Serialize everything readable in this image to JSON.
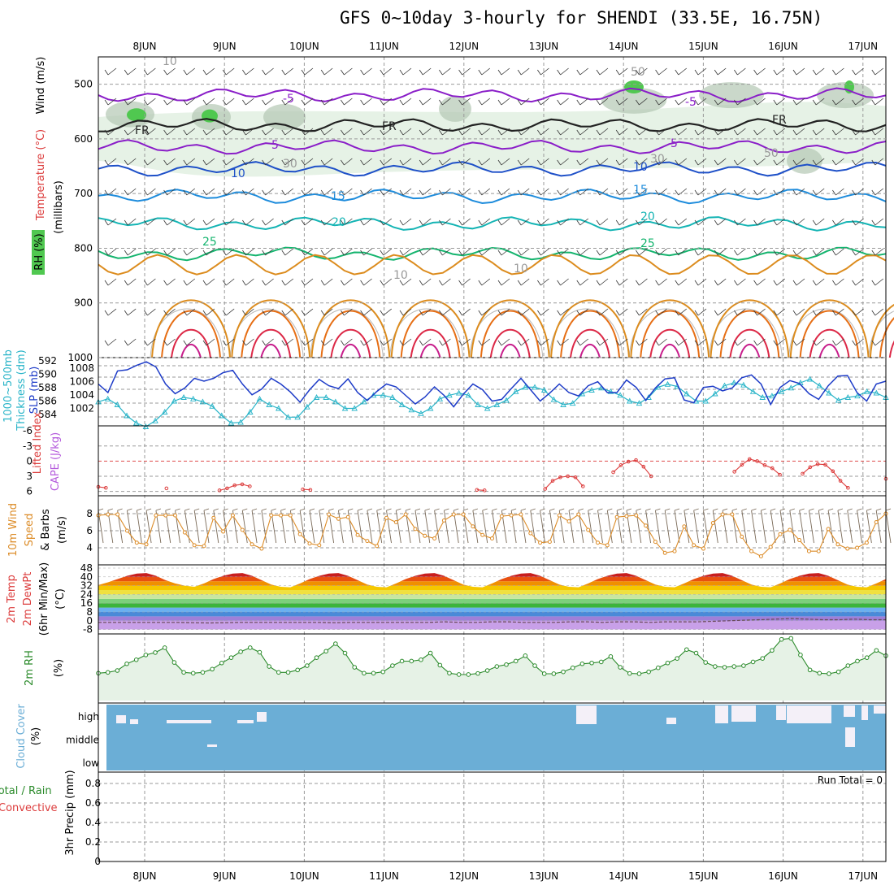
{
  "title": "GFS 0~10day 3-hourly for SHENDI (33.5E, 16.75N)",
  "date_labels": [
    "8JUN",
    "9JUN",
    "10JUN",
    "11JUN",
    "12JUN",
    "13JUN",
    "14JUN",
    "15JUN",
    "16JUN",
    "17JUN"
  ],
  "colors": {
    "purple": "#8a1ec8",
    "black": "#222222",
    "blue": "#1e50c8",
    "lightblue": "#1e8cdc",
    "teal": "#14b4b4",
    "green": "#14b46e",
    "orange": "#dc8c1e",
    "darkorange": "#e66e14",
    "red": "#dc2846",
    "magenta": "#c81e8c",
    "slp": "#1e3cc8",
    "thk": "#28b4c8",
    "li": "#dc3c3c",
    "wind": "#dc8c28",
    "rh": "#2a8a2a",
    "cloud": "#6baed6",
    "cloudgap": "#f4f0f8"
  },
  "panel_labels": {
    "upper": [
      "RH (%)",
      "Temperature (°C)",
      "Wind (m/s)",
      "(millibars)"
    ],
    "slp": [
      "1000~500mb",
      "Thickness (dm)",
      "SLP (mb)"
    ],
    "li": [
      "Lifted Index",
      "CAPE (J/kg)"
    ],
    "wind": [
      "10m Wind",
      "Speed",
      "& Barbs",
      "(m/s)"
    ],
    "temp": [
      "2m Temp",
      "2m DewPt",
      "(6hr Min/Max)",
      "(°C)"
    ],
    "rh": [
      "2m RH",
      "(%)"
    ],
    "cloud": [
      "Cloud Cover",
      "(%)"
    ],
    "precip": [
      "Total / Rain",
      "Convective",
      "3hr Precip (mm)"
    ]
  },
  "run_total": "Run Total = 0",
  "chart_data": [
    {
      "type": "line",
      "panel": "upper-air",
      "ylabel": "(millibars)",
      "y_ticks": [
        "500",
        "600",
        "700",
        "800",
        "900",
        "1000"
      ],
      "ylim": [
        1000,
        450
      ],
      "contour_labels": [
        {
          "text": "-5",
          "color": "purple"
        },
        {
          "text": "-5",
          "color": "purple"
        },
        {
          "text": "FR",
          "color": "black"
        },
        {
          "text": "FR",
          "color": "black"
        },
        {
          "text": "FR",
          "color": "black"
        },
        {
          "text": "5",
          "color": "purple"
        },
        {
          "text": "5",
          "color": "purple"
        },
        {
          "text": "10",
          "color": "blue"
        },
        {
          "text": "10",
          "color": "blue"
        },
        {
          "text": "15",
          "color": "lightblue"
        },
        {
          "text": "15",
          "color": "lightblue"
        },
        {
          "text": "20",
          "color": "teal"
        },
        {
          "text": "20",
          "color": "teal"
        },
        {
          "text": "25",
          "color": "green"
        },
        {
          "text": "25",
          "color": "green"
        },
        {
          "text": "10",
          "color": "gray"
        },
        {
          "text": "10",
          "color": "gray"
        },
        {
          "text": "30",
          "color": "gray"
        },
        {
          "text": "30",
          "color": "gray"
        },
        {
          "text": "50",
          "color": "gray"
        },
        {
          "text": "50",
          "color": "gray"
        },
        {
          "text": "10",
          "color": "gray"
        }
      ],
      "isotherms": [
        {
          "name": "-5",
          "level": 520,
          "color": "purple"
        },
        {
          "name": "FR",
          "level": 575,
          "color": "black"
        },
        {
          "name": "5",
          "level": 615,
          "color": "purple"
        },
        {
          "name": "10",
          "level": 655,
          "color": "blue"
        },
        {
          "name": "15",
          "level": 705,
          "color": "lightblue"
        },
        {
          "name": "20",
          "level": 755,
          "color": "teal"
        },
        {
          "name": "25",
          "level": 810,
          "color": "green"
        }
      ]
    },
    {
      "type": "line",
      "panel": "slp-thickness",
      "y_ticks_left": [
        "592",
        "590",
        "588",
        "586",
        "584"
      ],
      "y_ticks_right": [
        "1008",
        "1006",
        "1004",
        "1002"
      ],
      "series": [
        {
          "name": "SLP (mb)",
          "color": "slp",
          "values": [
            1005.5,
            1004,
            1007.8,
            1008,
            1008.8,
            1009.4,
            1008.5,
            1005.5,
            1003.8,
            1004.8,
            1006.5,
            1006,
            1006.5,
            1007.5,
            1007.9,
            1005.5,
            1003.6,
            1004.6,
            1006.5,
            1005.5,
            1004.1,
            1002.3,
            1004.5,
            1006.3,
            1005.2,
            1004.7,
            1006.4,
            1004,
            1002.6,
            1004.2,
            1005.5,
            1005,
            1003.5,
            1002,
            1003.2,
            1005,
            1003.5,
            1001.5,
            1003.7,
            1005.5,
            1004.5,
            1002.5,
            1002.8,
            1004.7,
            1006.5,
            1004.5,
            1002.5,
            1003.9,
            1005.5,
            1004,
            1003.4,
            1005.2,
            1005.9,
            1004,
            1004,
            1006.2,
            1004.9,
            1002.6,
            1004.8,
            1006.4,
            1006.6,
            1002.7,
            1002.2,
            1004.9,
            1005.1,
            1004.3,
            1004.8,
            1006.6,
            1007.1,
            1005.5,
            1001.9,
            1004.9,
            1006.1,
            1005.6,
            1003.8,
            1002.8,
            1005.2,
            1006.9,
            1007,
            1004,
            1002.5,
            1005.5,
            1006
          ]
        },
        {
          "name": "1000~500mb Thickness (dm)",
          "color": "thk",
          "values": [
            586.4,
            586.8,
            586,
            584.5,
            583.5,
            583,
            583.8,
            585,
            586.5,
            587,
            586.8,
            586.4,
            585.8,
            584.5,
            583.5,
            583.6,
            585,
            586.8,
            586,
            585.5,
            584.3,
            584.3,
            585.7,
            587,
            587,
            586.4,
            585.5,
            585.5,
            586.4,
            587.3,
            587.3,
            587,
            586,
            585.3,
            584.8,
            585.5,
            586.8,
            587.3,
            587.6,
            587.3,
            586,
            585.5,
            586,
            586.6,
            587.8,
            588.4,
            588.4,
            588,
            586.7,
            586,
            586.2,
            587.5,
            588,
            588.3,
            587.8,
            587.3,
            586.5,
            586.2,
            587,
            588.4,
            588.8,
            588.5,
            587.5,
            586.5,
            586.5,
            587.5,
            588.6,
            589,
            588.7,
            587.8,
            587,
            587.2,
            587.8,
            588.3,
            589,
            589.5,
            588.6,
            587.6,
            586.6,
            587,
            587.2,
            587.8,
            587.6,
            587
          ]
        }
      ]
    },
    {
      "type": "line",
      "panel": "lifted-index",
      "y_ticks": [
        "-6",
        "-3",
        "0",
        "3",
        "6"
      ],
      "ylim": [
        6,
        -6
      ],
      "series": [
        {
          "name": "Lifted Index",
          "color": "li",
          "values": [
            5.1,
            5.3,
            null,
            null,
            null,
            null,
            null,
            null,
            null,
            5.4,
            null,
            null,
            null,
            null,
            null,
            null,
            5.8,
            5.4,
            4.8,
            4.6,
            5.0,
            null,
            null,
            null,
            null,
            null,
            null,
            5.6,
            5.7,
            null,
            null,
            null,
            null,
            null,
            null,
            null,
            null,
            null,
            null,
            null,
            null,
            null,
            null,
            null,
            null,
            null,
            null,
            null,
            null,
            null,
            5.7,
            5.8,
            null,
            null,
            null,
            null,
            null,
            null,
            null,
            5.5,
            3.9,
            3.2,
            3.0,
            3.2,
            5.0,
            null,
            null,
            null,
            2.2,
            0.8,
            0.1,
            -0.2,
            1.1,
            3.0,
            null,
            null,
            null,
            null,
            null,
            null,
            null,
            null,
            null,
            null,
            2.1,
            0.7,
            -0.4,
            0,
            0.8,
            1.4,
            2.7,
            null,
            null,
            2.5,
            1.2,
            0.6,
            0.7,
            2.0,
            3.9,
            5.3,
            null,
            null,
            null,
            null,
            3.5
          ]
        }
      ]
    },
    {
      "type": "line",
      "panel": "10m-wind",
      "ylabel": "(m/s)",
      "y_ticks": [
        "8",
        "6",
        "4"
      ],
      "series": [
        {
          "name": "Speed",
          "color": "wind",
          "values": [
            7.8,
            7.9,
            7.9,
            6,
            4.6,
            4.4,
            7.8,
            7.8,
            7.8,
            5.8,
            4.3,
            4.2,
            7.5,
            5.9,
            7.8,
            6.1,
            4.4,
            3.9,
            7.8,
            7.8,
            7.8,
            5.6,
            4.5,
            4.3,
            7.9,
            7.4,
            7.6,
            5.5,
            4.8,
            4.2,
            7.5,
            7,
            7.9,
            6.2,
            5.4,
            5.1,
            7.2,
            7.9,
            7.9,
            6.5,
            5.5,
            5.1,
            7.7,
            7.8,
            7.9,
            5.7,
            4.6,
            4.7,
            7.8,
            7.1,
            7.9,
            6.1,
            4.6,
            4.3,
            7.6,
            7.7,
            7.8,
            6.6,
            4.7,
            3.4,
            3.6,
            6.5,
            4.3,
            3.9,
            6.9,
            7.9,
            7.9,
            5.3,
            3.6,
            3.0,
            4.1,
            5.6,
            6.1,
            4.9,
            3.6,
            3.6,
            6.2,
            4.4,
            3.9,
            4.0,
            4.6,
            7.0,
            8.0
          ]
        }
      ]
    },
    {
      "type": "area",
      "panel": "2m-temp",
      "ylabel": "(°C)",
      "y_ticks": [
        "48",
        "40",
        "32",
        "24",
        "16",
        "8",
        "0",
        "-8"
      ],
      "ylim": [
        -8,
        48
      ],
      "series": [
        {
          "name": "2m Temp",
          "values": [
            32.5,
            35,
            38,
            41,
            43,
            43.5,
            41,
            37,
            34,
            32,
            31,
            34,
            38,
            41,
            43,
            43.5,
            41,
            37,
            33,
            31,
            30.5,
            34,
            38,
            41,
            43,
            43.5,
            41,
            37,
            33,
            31,
            30.5,
            34,
            38,
            41,
            43,
            43.5,
            41,
            37,
            33,
            31,
            30.5,
            34,
            38,
            41,
            43,
            43.5,
            41,
            37,
            33,
            31,
            30.5,
            34,
            38,
            41,
            43,
            43.5,
            41,
            37,
            33,
            31,
            30.5,
            34,
            38,
            41,
            43,
            43.5,
            41,
            37,
            33,
            31,
            30.5,
            34,
            38,
            41,
            43,
            43.5,
            41,
            37,
            33,
            31,
            30.5,
            34,
            38
          ]
        },
        {
          "name": "2m DewPt",
          "values": [
            -1.5,
            -1.5,
            -1.5,
            -1.5,
            -1.5,
            -1.5,
            -1.8,
            -2,
            -1.8,
            -1.5,
            -1.5,
            -1.5,
            -1.5,
            -1.5,
            -1.5,
            -1.8,
            -1.5,
            -1.5,
            -1.5,
            -1.5,
            -1.5,
            -1.5,
            -1,
            -1.5,
            -1.5,
            -1,
            -1,
            -1.5,
            -1.5,
            -1.5,
            -1,
            -1,
            -1.5,
            -1,
            -1,
            -1.5,
            -1,
            -1,
            -1,
            -0.5,
            0,
            0.5,
            1,
            1.5,
            2,
            1.5,
            1,
            1,
            1.5,
            1,
            1
          ]
        }
      ]
    },
    {
      "type": "line",
      "panel": "2m-rh",
      "ylabel": "(%)",
      "series": [
        {
          "name": "2m RH",
          "color": "rh",
          "values": [
            9,
            9.3,
            10,
            12.5,
            14,
            15.8,
            16.7,
            18.5,
            13,
            9.3,
            9,
            9.3,
            10.5,
            12.8,
            14.8,
            17,
            18.5,
            16.8,
            11.5,
            9.3,
            9.3,
            10.2,
            11.8,
            14.8,
            17.2,
            20,
            16.5,
            11.2,
            9,
            9,
            9.5,
            11.8,
            13.5,
            13.5,
            14,
            16.5,
            12,
            9,
            8.5,
            8.5,
            8.9,
            10,
            11.5,
            12.2,
            13.5,
            15.5,
            11.8,
            8.8,
            8.8,
            9.5,
            11,
            12.5,
            12.8,
            13.2,
            15.2,
            11.2,
            8.9,
            8.8,
            9.5,
            11,
            12.8,
            14.5,
            17.8,
            16.5,
            13,
            11.5,
            11.2,
            11.5,
            11.8,
            13.2,
            14.5,
            17.5,
            21.6,
            22,
            15.8,
            10.2,
            9,
            8.8,
            9.5,
            11.8,
            13.5,
            14.8,
            17.5,
            15.5
          ]
        }
      ]
    },
    {
      "type": "bar",
      "panel": "cloud-cover",
      "ylabel": "(%)",
      "y_ticks": [
        "high",
        "middle",
        "low"
      ]
    },
    {
      "type": "line",
      "panel": "3hr-precip",
      "ylabel": "3hr Precip (mm)",
      "y_ticks": [
        "0.8",
        "0.6",
        "0.4",
        "0.2",
        "0"
      ],
      "ylim": [
        0,
        0.9
      ],
      "series": [
        {
          "name": "Total / Rain",
          "values": [
            0
          ]
        },
        {
          "name": "Convective",
          "values": [
            0
          ]
        }
      ]
    }
  ]
}
